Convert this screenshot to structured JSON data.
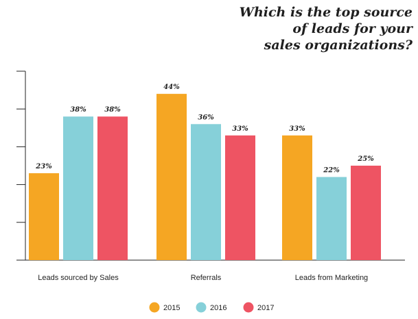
{
  "title_lines": [
    "Which is the top source",
    "of leads for your",
    "sales organizations?"
  ],
  "chart_data": {
    "type": "bar",
    "categories": [
      "Leads sourced by Sales",
      "Referrals",
      "Leads from Marketing"
    ],
    "series": [
      {
        "name": "2015",
        "color": "#F5A623",
        "values": [
          23,
          44,
          33
        ],
        "labels": [
          "23%",
          "44%",
          "33%"
        ]
      },
      {
        "name": "2016",
        "color": "#86D0D9",
        "values": [
          38,
          36,
          22
        ],
        "labels": [
          "38%",
          "36%",
          "22%"
        ]
      },
      {
        "name": "2017",
        "color": "#EE5463",
        "values": [
          38,
          33,
          25
        ],
        "labels": [
          "38%",
          "33%",
          "25%"
        ]
      }
    ],
    "ylim": [
      0,
      50
    ],
    "ytick_count": 6,
    "legend_position": "bottom-center",
    "grid": false
  }
}
